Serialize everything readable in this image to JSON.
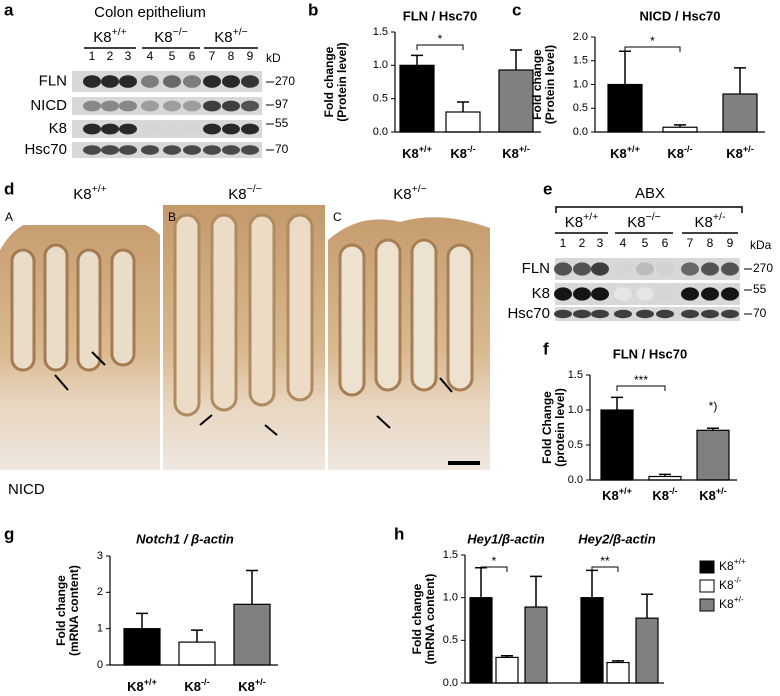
{
  "panels": {
    "a": {
      "letter": "a",
      "title": "Colon epithelium",
      "groups": [
        "K8+/+",
        "K8−/−",
        "K8+/−"
      ],
      "lanes": [
        "1",
        "2",
        "3",
        "4",
        "5",
        "6",
        "7",
        "8",
        "9"
      ],
      "unit": "kD",
      "rows": [
        "FLN",
        "NICD",
        "K8",
        "Hsc70"
      ],
      "markers": [
        "270",
        "97",
        "55",
        "70"
      ]
    },
    "d": {
      "letter": "d",
      "headers": [
        "K8+/+",
        "K8−/−",
        "K8+/−"
      ],
      "images": [
        "A",
        "B",
        "C"
      ],
      "stain": "NICD"
    },
    "e": {
      "letter": "e",
      "title": "ABX",
      "groups": [
        "K8+/+",
        "K8−/−",
        "K8+/-"
      ],
      "lanes": [
        "1",
        "2",
        "3",
        "4",
        "5",
        "6",
        "7",
        "8",
        "9"
      ],
      "unit": "kDa",
      "rows": [
        "FLN",
        "K8",
        "Hsc70"
      ],
      "markers": [
        "270",
        "55",
        "70"
      ]
    }
  },
  "chart_data": [
    {
      "type": "bar",
      "panel": "b",
      "title": "FLN / Hsc70",
      "ylabel": [
        "Fold change",
        "(Protein level)"
      ],
      "categories": [
        "K8+/+",
        "K8-/-",
        "K8+/-"
      ],
      "values": [
        1,
        0.3,
        0.93
      ],
      "errors": [
        0.15,
        0.15,
        0.3
      ],
      "colors": [
        "#000000",
        "#ffffff",
        "#808080"
      ],
      "annotations": [
        "*"
      ],
      "ylim": [
        0,
        1.5
      ],
      "yticks": [
        {
          "value": 0,
          "label": "0.0"
        },
        {
          "value": 0.5,
          "label": "0.5"
        },
        {
          "value": 1,
          "label": "1.0"
        },
        {
          "value": 1.5,
          "label": "1.5"
        }
      ]
    },
    {
      "type": "bar",
      "panel": "c",
      "title": "NICD / Hsc70",
      "ylabel": [
        "Fold change",
        "(Protein level)"
      ],
      "categories": [
        "K8+/+",
        "K8-/-",
        "K8+/-"
      ],
      "values": [
        1,
        0.1,
        0.8
      ],
      "errors": [
        0.7,
        0.05,
        0.55
      ],
      "colors": [
        "#000000",
        "#ffffff",
        "#808080"
      ],
      "annotations": [
        "*"
      ],
      "ylim": [
        0,
        2
      ],
      "yticks": [
        {
          "value": 0,
          "label": "0.0"
        },
        {
          "value": 0.5,
          "label": "0.5"
        },
        {
          "value": 1,
          "label": "1.0"
        },
        {
          "value": 1.5,
          "label": "1.5"
        },
        {
          "value": 2,
          "label": "2.0"
        }
      ]
    },
    {
      "type": "bar",
      "panel": "f",
      "title": "FLN / Hsc70",
      "ylabel": [
        "Fold Change",
        "(protein level)"
      ],
      "categories": [
        "K8+/+",
        "K8-/-",
        "K8+/-"
      ],
      "values": [
        1,
        0.05,
        0.71
      ],
      "errors": [
        0.18,
        0.03,
        0.03
      ],
      "colors": [
        "#000000",
        "#ffffff",
        "#808080"
      ],
      "annotations": [
        "***",
        "*)"
      ],
      "ylim": [
        0,
        1.5
      ],
      "yticks": [
        {
          "value": 0,
          "label": "0.0"
        },
        {
          "value": 0.5,
          "label": "0.5"
        },
        {
          "value": 1,
          "label": "1.0"
        },
        {
          "value": 1.5,
          "label": "1.5"
        }
      ]
    },
    {
      "type": "bar",
      "panel": "g",
      "title": "Notch1 / β-actin",
      "ylabel": [
        "Fold change",
        "(mRNA content)"
      ],
      "categories": [
        "K8+/+",
        "K8-/-",
        "K8+/-"
      ],
      "values": [
        1,
        0.63,
        1.67
      ],
      "errors": [
        0.42,
        0.33,
        0.93
      ],
      "colors": [
        "#000000",
        "#ffffff",
        "#808080"
      ],
      "annotations": [],
      "ylim": [
        0,
        3
      ],
      "yticks": [
        0,
        1,
        2,
        3
      ]
    },
    {
      "type": "grouped-bar",
      "panel": "h",
      "ylabel": [
        "Fold change",
        "(mRNA content)"
      ],
      "categories": [
        "Hey1/β-actin",
        "Hey2/β-actin"
      ],
      "series": [
        {
          "name": "K8+/+",
          "color": "#000000",
          "values": [
            1,
            1
          ],
          "errors": [
            0.35,
            0.32
          ]
        },
        {
          "name": "K8-/-",
          "color": "#ffffff",
          "values": [
            0.3,
            0.24
          ],
          "errors": [
            0.02,
            0.02
          ]
        },
        {
          "name": "K8+/-",
          "color": "#808080",
          "values": [
            0.89,
            0.76
          ],
          "errors": [
            0.36,
            0.28
          ]
        }
      ],
      "annotations": [
        "*",
        "**"
      ],
      "ylim": [
        0,
        1.5
      ],
      "yticks": [
        {
          "value": 0,
          "label": "0.0"
        },
        {
          "value": 0.5,
          "label": "0.5"
        },
        {
          "value": 1,
          "label": "1.0"
        },
        {
          "value": 1.5,
          "label": "1.5"
        }
      ]
    }
  ]
}
